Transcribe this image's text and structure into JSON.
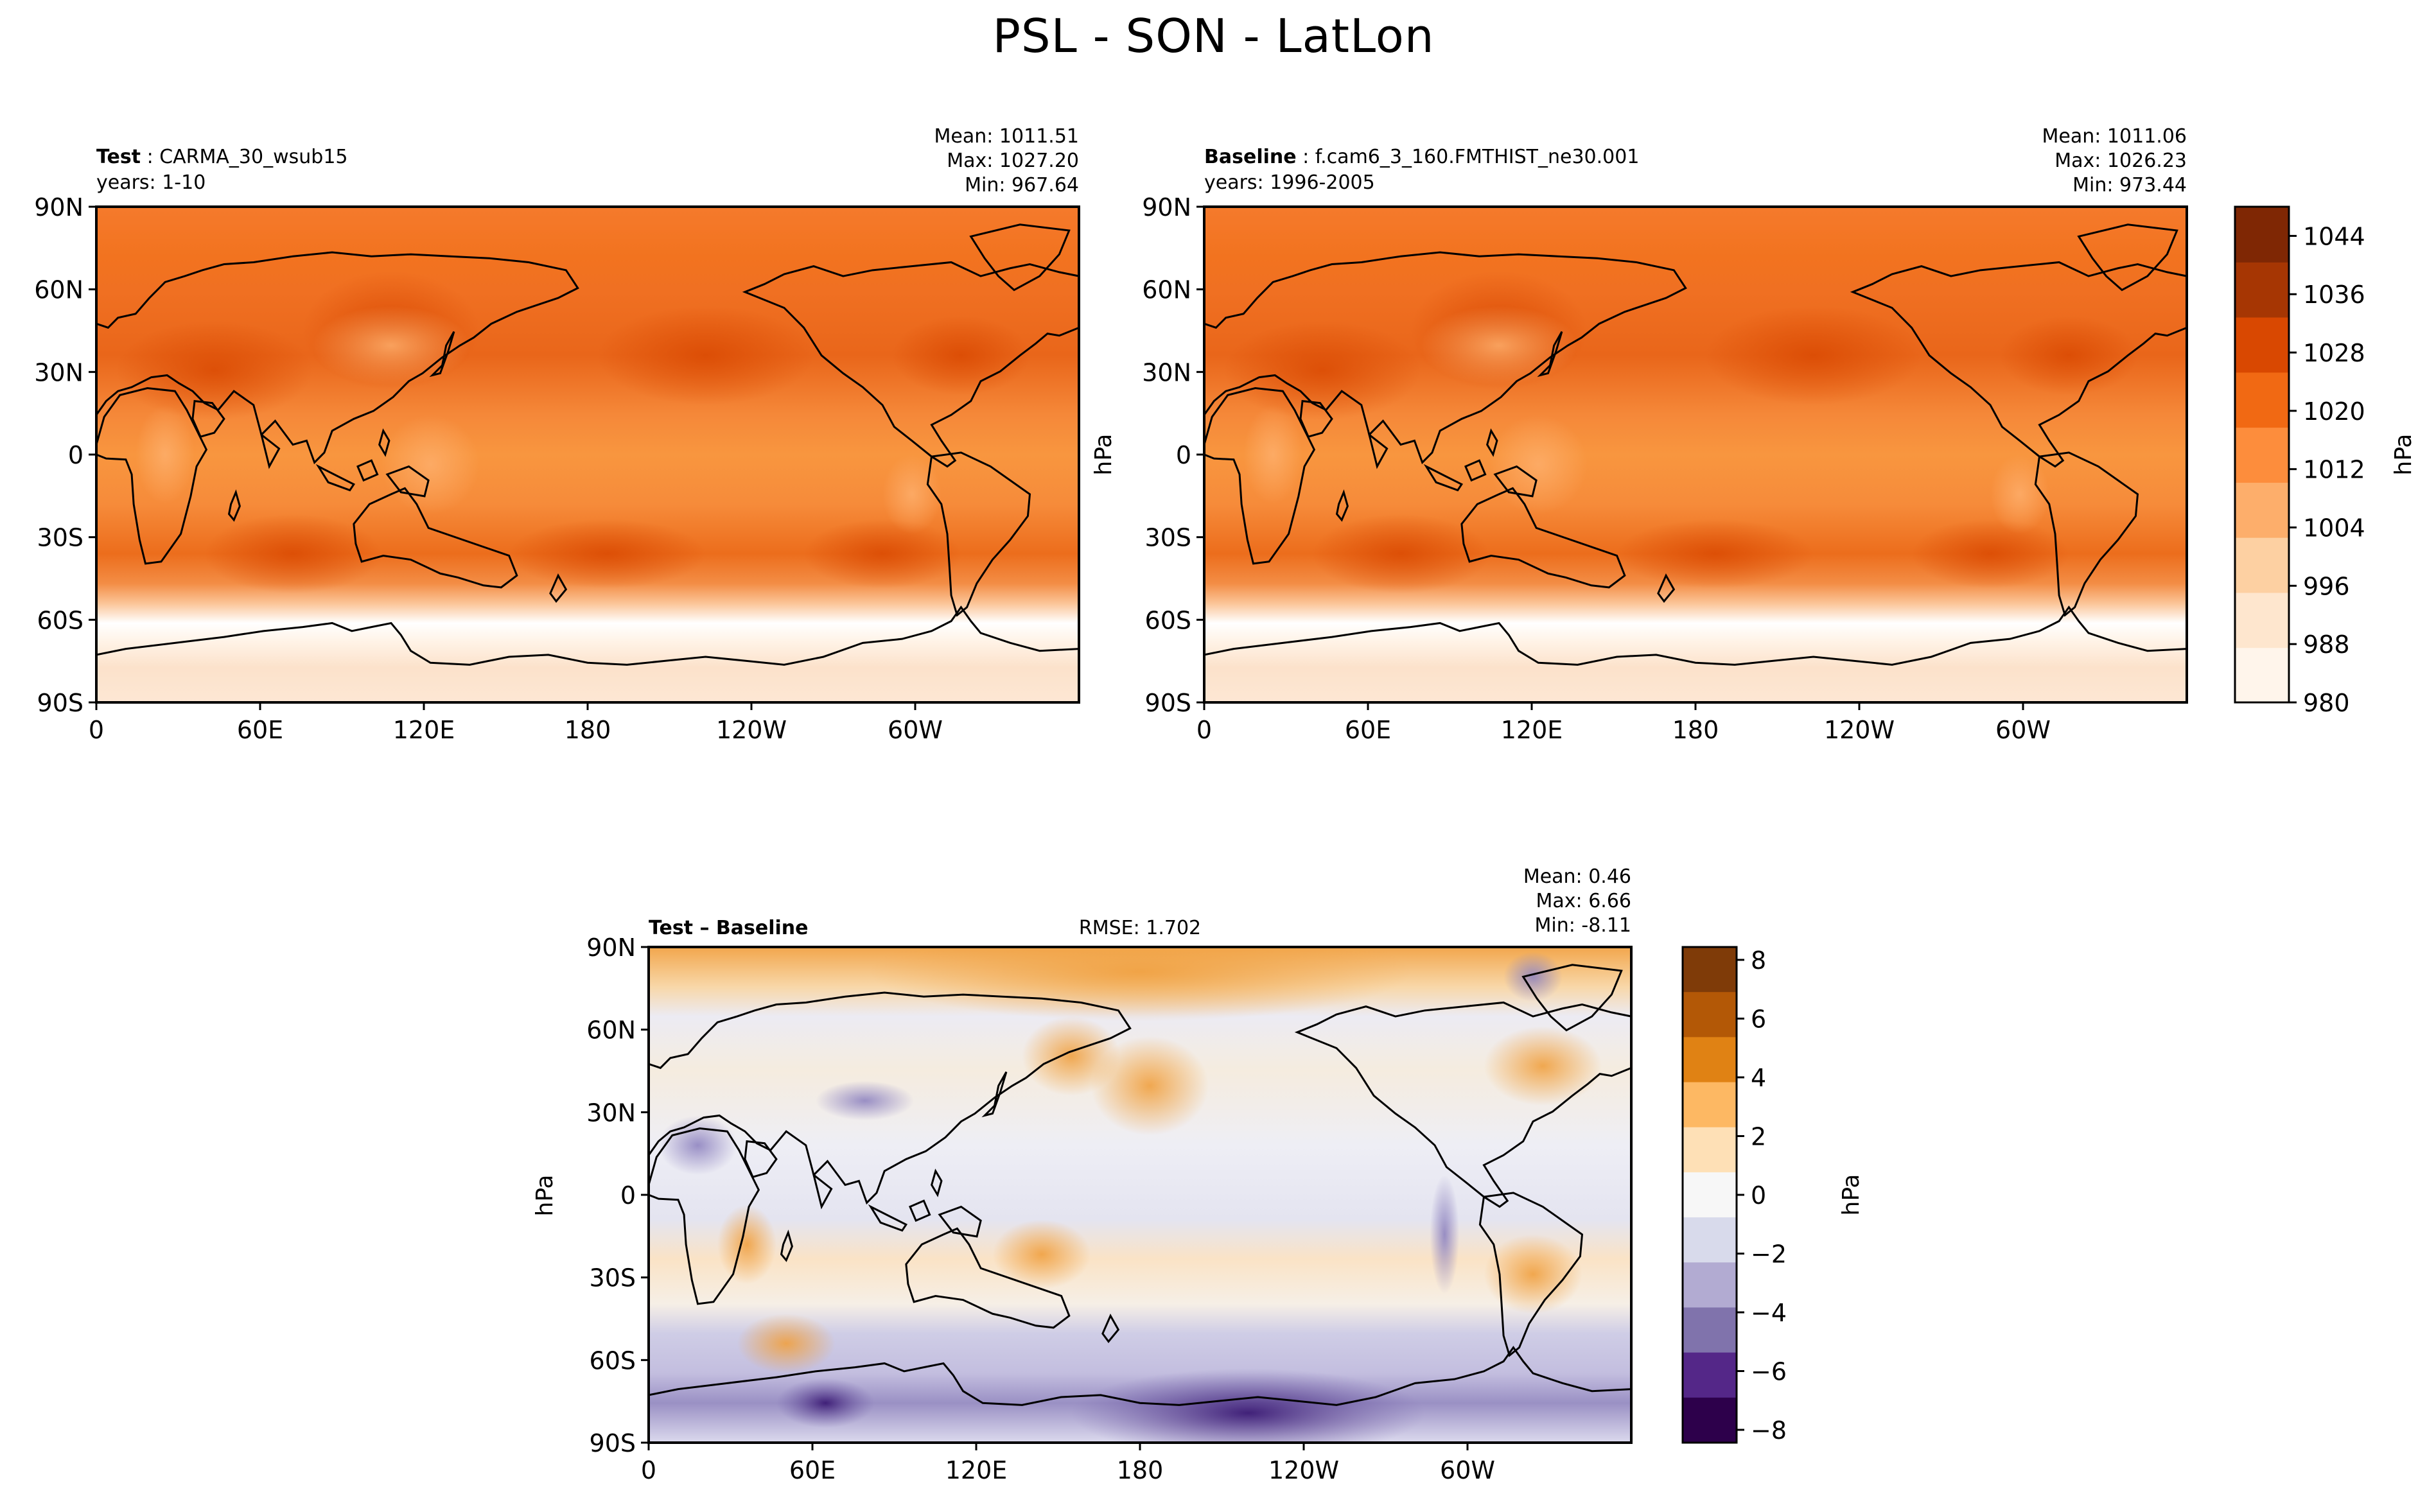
{
  "page": {
    "title": "PSL - SON - LatLon"
  },
  "panels": [
    {
      "id": "test",
      "label_bold": "Test",
      "label_text": "CARMA_30_wsub15",
      "years": "years: 1-10",
      "stats": [
        "Mean: 1011.51",
        "Max: 1027.20",
        "Min: 967.64"
      ]
    },
    {
      "id": "baseline",
      "label_bold": "Baseline",
      "label_text": "f.cam6_3_160.FMTHIST_ne30.001",
      "years": "years: 1996-2005",
      "stats": [
        "Mean: 1011.06",
        "Max: 1026.23",
        "Min: 973.44"
      ]
    },
    {
      "id": "diff",
      "label_bold": "Test – Baseline",
      "rmse": "RMSE: 1.702",
      "stats": [
        "Mean:  0.46",
        "Max:  6.66",
        "Min: -8.11"
      ]
    }
  ],
  "axes": {
    "lat_ticks": [
      "90N",
      "60N",
      "30N",
      "0",
      "30S",
      "60S",
      "90S"
    ],
    "lon_ticks": [
      "0",
      "60E",
      "120E",
      "180",
      "120W",
      "60W"
    ],
    "ylabel": "hPa"
  },
  "colorbars": {
    "abs": {
      "ticks": [
        "980",
        "988",
        "996",
        "1004",
        "1012",
        "1020",
        "1028",
        "1036",
        "1044"
      ],
      "label": "hPa",
      "colors": [
        "#fff5eb",
        "#fee6ce",
        "#fdd0a2",
        "#fdae6b",
        "#fd8d3c",
        "#f16913",
        "#d94801",
        "#a63603",
        "#7f2704"
      ]
    },
    "diff": {
      "ticks": [
        "8",
        "6",
        "4",
        "2",
        "0",
        "−2",
        "−4",
        "−6",
        "−8"
      ],
      "label": "hPa",
      "colors": [
        "#7f3b08",
        "#b35806",
        "#e08214",
        "#fdb863",
        "#fee0b6",
        "#f7f7f7",
        "#d8daeb",
        "#b2abd2",
        "#8073ac",
        "#542788",
        "#2d004b"
      ]
    }
  },
  "chart_data": [
    {
      "type": "heatmap",
      "title": "Test: CARMA_30_wsub15",
      "variable": "PSL",
      "units": "hPa",
      "lat_range": [
        -90,
        90
      ],
      "lon_range": [
        0,
        360
      ],
      "zonal_profile_hPa": {
        "90N": 1016,
        "60N": 1013,
        "30N": 1018,
        "0": 1011,
        "30S": 1019,
        "45S": 1006,
        "60S": 985,
        "75S": 990,
        "90S": 992
      },
      "stats": {
        "mean": 1011.51,
        "max": 1027.2,
        "min": 967.64
      },
      "colorbar_range": [
        980,
        1048
      ]
    },
    {
      "type": "heatmap",
      "title": "Baseline: f.cam6_3_160.FMTHIST_ne30.001",
      "variable": "PSL",
      "units": "hPa",
      "lat_range": [
        -90,
        90
      ],
      "lon_range": [
        0,
        360
      ],
      "zonal_profile_hPa": {
        "90N": 1015,
        "60N": 1012,
        "30N": 1018,
        "0": 1011,
        "30S": 1019,
        "45S": 1005,
        "60S": 986,
        "75S": 992,
        "90S": 994
      },
      "stats": {
        "mean": 1011.06,
        "max": 1026.23,
        "min": 973.44
      },
      "colorbar_range": [
        980,
        1048
      ]
    },
    {
      "type": "heatmap",
      "title": "Test – Baseline",
      "variable": "PSL difference",
      "units": "hPa",
      "lat_range": [
        -90,
        90
      ],
      "lon_range": [
        0,
        360
      ],
      "zonal_profile_hPa": {
        "90N": 2.5,
        "60N": 0.5,
        "30N": 1.0,
        "0": -0.5,
        "30S": 1.0,
        "60S": -2.0,
        "75S": -4.0,
        "90S": -1.0
      },
      "rmse": 1.702,
      "stats": {
        "mean": 0.46,
        "max": 6.66,
        "min": -8.11
      },
      "colorbar_range": [
        -9,
        9
      ]
    }
  ]
}
